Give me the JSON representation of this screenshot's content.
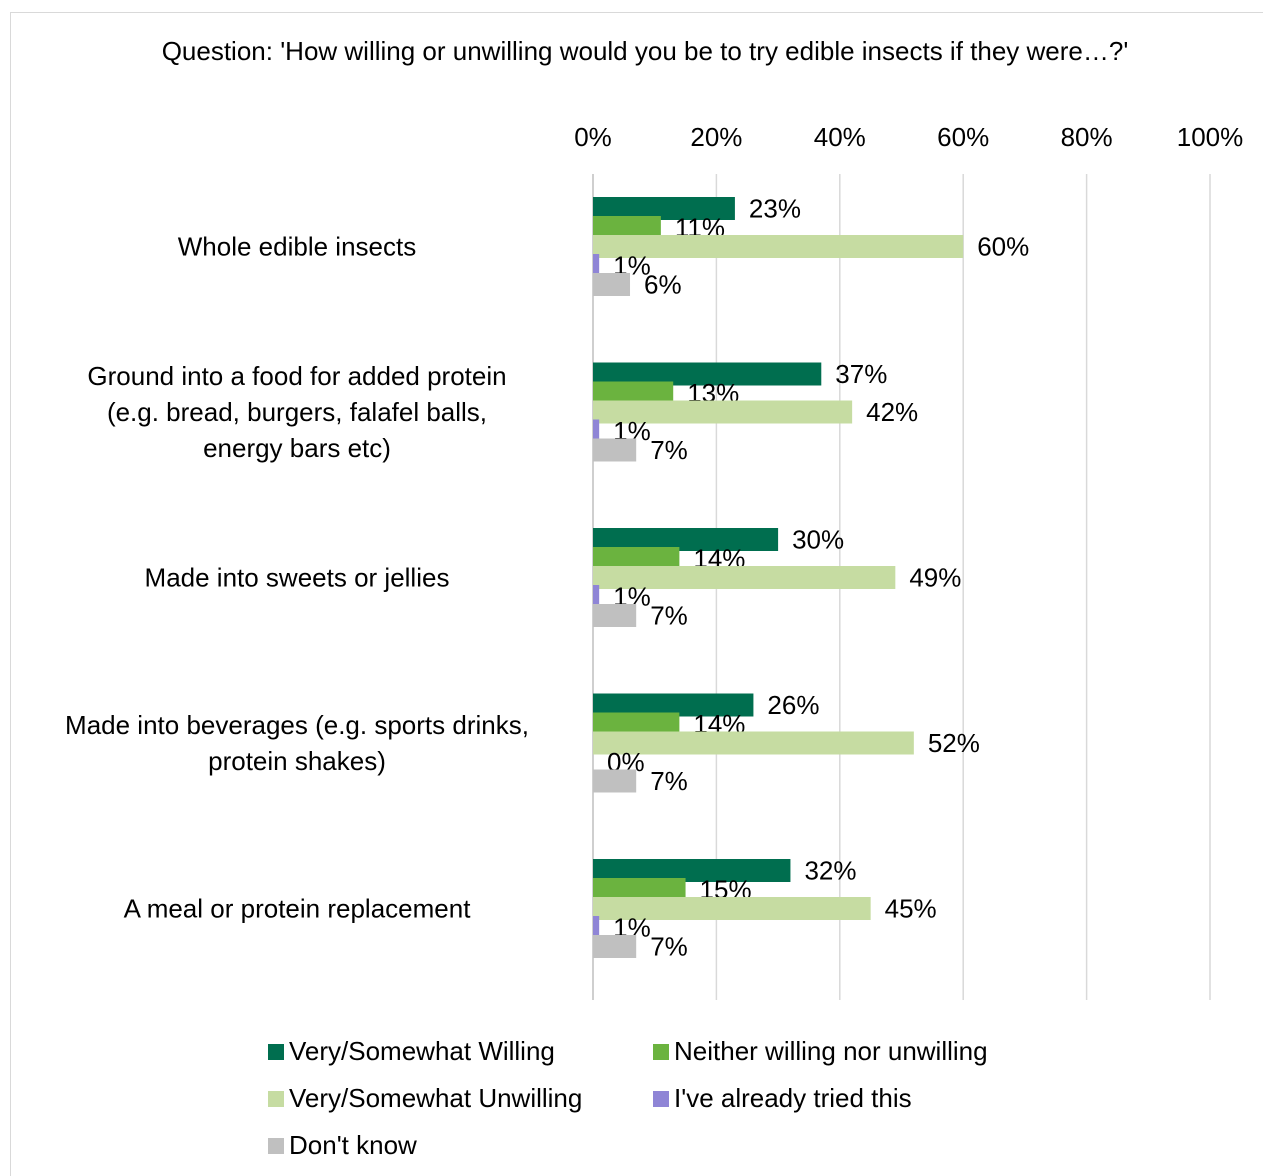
{
  "chart_data": {
    "type": "bar",
    "orientation": "horizontal",
    "title": "Question: 'How willing or unwilling would you be to try edible insects if they were…?'",
    "categories": [
      "Whole edible insects",
      "Ground into a food for added protein (e.g. bread, burgers, falafel balls, energy bars etc)",
      "Made into sweets or jellies",
      "Made into beverages (e.g. sports drinks, protein shakes)",
      "A meal or protein replacement"
    ],
    "series": [
      {
        "name": "Very/Somewhat Willing",
        "color": "#006e4f",
        "values": [
          23,
          37,
          30,
          26,
          32
        ]
      },
      {
        "name": "Neither willing nor unwilling",
        "color": "#6bb33f",
        "values": [
          11,
          13,
          14,
          14,
          15
        ]
      },
      {
        "name": "Very/Somewhat Unwilling",
        "color": "#c6dca2",
        "values": [
          60,
          42,
          49,
          52,
          45
        ]
      },
      {
        "name": "I've already tried this",
        "color": "#8f85d6",
        "values": [
          1,
          1,
          1,
          0,
          1
        ]
      },
      {
        "name": "Don't know",
        "color": "#c0c0c0",
        "values": [
          6,
          7,
          7,
          7,
          7
        ]
      }
    ],
    "xlim": [
      0,
      100
    ],
    "ticks": [
      "0%",
      "20%",
      "40%",
      "60%",
      "80%",
      "100%"
    ],
    "value_suffix": "%",
    "grid": true,
    "axis_position": "top",
    "legend_position": "bottom"
  }
}
